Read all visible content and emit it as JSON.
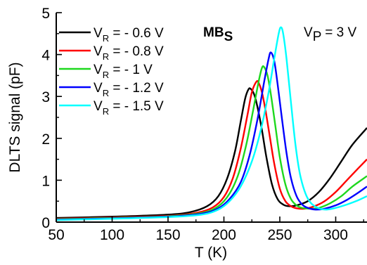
{
  "chart_data": {
    "type": "line",
    "xlabel": "T (K)",
    "ylabel": "DLTS signal (pF)",
    "xlim": [
      50,
      328
    ],
    "ylim": [
      0,
      5
    ],
    "x_ticks": [
      "50",
      "100",
      "150",
      "200",
      "250",
      "300"
    ],
    "y_ticks": [
      "0",
      "1",
      "2",
      "3",
      "4",
      "5"
    ],
    "grid": false,
    "legend_position": "top-left",
    "annotations": {
      "sample_main": "MB",
      "sample_sub": "S",
      "pulse_prefix": "V",
      "pulse_sub": "P",
      "pulse_value": " = 3 V"
    },
    "series": [
      {
        "name": "V_R = - 0.6 V",
        "legend_main": "V",
        "legend_sub": "R",
        "legend_value": " = - 0.6 V",
        "color": "#000000",
        "x": [
          50,
          100,
          150,
          170,
          185,
          195,
          203,
          210,
          215,
          219,
          222,
          224,
          227,
          230,
          234,
          238,
          243,
          248,
          253,
          258,
          265,
          275,
          285,
          295,
          305,
          315,
          328
        ],
        "y": [
          0.1,
          0.13,
          0.18,
          0.24,
          0.38,
          0.62,
          1.05,
          1.7,
          2.4,
          2.95,
          3.17,
          3.18,
          3.05,
          2.75,
          2.2,
          1.55,
          0.9,
          0.55,
          0.42,
          0.38,
          0.4,
          0.5,
          0.72,
          1.05,
          1.45,
          1.85,
          2.25
        ]
      },
      {
        "name": "V_R = - 0.8 V",
        "legend_main": "V",
        "legend_sub": "R",
        "legend_value": " = - 0.8 V",
        "color": "#ff0000",
        "x": [
          50,
          100,
          150,
          175,
          190,
          200,
          208,
          215,
          221,
          225,
          229,
          231,
          234,
          237,
          241,
          245,
          250,
          255,
          260,
          265,
          272,
          280,
          290,
          300,
          310,
          320,
          328
        ],
        "y": [
          0.08,
          0.11,
          0.15,
          0.22,
          0.35,
          0.6,
          1.05,
          1.75,
          2.55,
          3.1,
          3.35,
          3.33,
          3.1,
          2.7,
          2.05,
          1.4,
          0.8,
          0.5,
          0.38,
          0.33,
          0.32,
          0.37,
          0.5,
          0.72,
          1.0,
          1.28,
          1.5
        ]
      },
      {
        "name": "V_R = - 1 V",
        "legend_main": "V",
        "legend_sub": "R",
        "legend_value": " = - 1 V",
        "color": "#1ed81e",
        "x": [
          50,
          100,
          150,
          180,
          195,
          205,
          213,
          220,
          226,
          231,
          234,
          236,
          239,
          242,
          246,
          250,
          255,
          260,
          265,
          270,
          278,
          285,
          295,
          305,
          315,
          328
        ],
        "y": [
          0.07,
          0.1,
          0.14,
          0.22,
          0.38,
          0.68,
          1.15,
          1.85,
          2.65,
          3.35,
          3.68,
          3.7,
          3.5,
          3.05,
          2.3,
          1.55,
          0.9,
          0.55,
          0.4,
          0.34,
          0.32,
          0.34,
          0.45,
          0.62,
          0.85,
          1.1
        ]
      },
      {
        "name": "V_R = - 1.2 V",
        "legend_main": "V",
        "legend_sub": "R",
        "legend_value": " = - 1.2 V",
        "color": "#0000ff",
        "x": [
          50,
          100,
          150,
          180,
          195,
          205,
          215,
          223,
          230,
          236,
          240,
          242,
          245,
          248,
          252,
          256,
          260,
          265,
          270,
          275,
          282,
          290,
          300,
          310,
          320,
          328
        ],
        "y": [
          0.06,
          0.09,
          0.13,
          0.2,
          0.33,
          0.55,
          0.95,
          1.6,
          2.45,
          3.35,
          3.9,
          4.05,
          3.85,
          3.3,
          2.45,
          1.65,
          1.05,
          0.62,
          0.42,
          0.34,
          0.3,
          0.32,
          0.4,
          0.53,
          0.7,
          0.85
        ]
      },
      {
        "name": "V_R = - 1.5 V",
        "legend_main": "V",
        "legend_sub": "R",
        "legend_value": " = - 1.5 V",
        "color": "#00ffff",
        "x": [
          50,
          100,
          150,
          180,
          195,
          205,
          215,
          225,
          233,
          240,
          245,
          249,
          251,
          253,
          256,
          260,
          264,
          268,
          273,
          278,
          285,
          292,
          300,
          310,
          320,
          328
        ],
        "y": [
          0.05,
          0.08,
          0.12,
          0.18,
          0.3,
          0.5,
          0.85,
          1.45,
          2.2,
          3.1,
          3.9,
          4.5,
          4.65,
          4.5,
          3.9,
          2.85,
          1.85,
          1.15,
          0.68,
          0.45,
          0.33,
          0.3,
          0.34,
          0.42,
          0.52,
          0.62
        ]
      }
    ]
  }
}
